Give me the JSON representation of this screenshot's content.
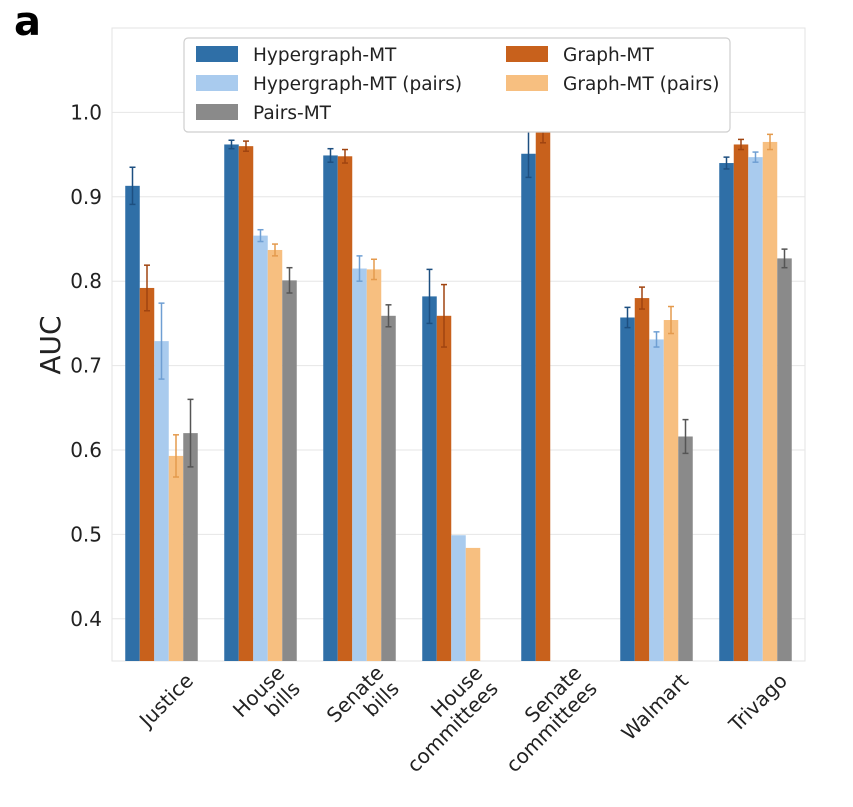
{
  "panel_label": "a",
  "chart_data": {
    "type": "bar",
    "title": "",
    "xlabel": "",
    "ylabel": "AUC",
    "ylim": [
      0.35,
      1.1
    ],
    "yticks": [
      0.4,
      0.5,
      0.6,
      0.7,
      0.8,
      0.9,
      1.0
    ],
    "ytick_labels": [
      "0.4",
      "0.5",
      "0.6",
      "0.7",
      "0.8",
      "0.9",
      "1.0"
    ],
    "grid": true,
    "legend_placement": "top",
    "categories": [
      [
        "Justice"
      ],
      [
        "House",
        "bills"
      ],
      [
        "Senate",
        "bills"
      ],
      [
        "House",
        "committees"
      ],
      [
        "Senate",
        "committees"
      ],
      [
        "Walmart"
      ],
      [
        "Trivago"
      ]
    ],
    "series": [
      {
        "name": "Hypergraph-MT",
        "color": "#2f6fa7",
        "values": [
          0.913,
          0.962,
          0.949,
          0.782,
          0.951,
          0.757,
          0.94
        ],
        "errors": [
          0.022,
          0.005,
          0.008,
          0.032,
          0.028,
          0.012,
          0.007
        ]
      },
      {
        "name": "Graph-MT",
        "color": "#c8611c",
        "values": [
          0.792,
          0.96,
          0.948,
          0.759,
          0.977,
          0.78,
          0.962
        ],
        "errors": [
          0.027,
          0.006,
          0.008,
          0.037,
          0.013,
          0.013,
          0.006
        ]
      },
      {
        "name": "Hypergraph-MT (pairs)",
        "color": "#a9cbee",
        "values": [
          0.729,
          0.854,
          0.815,
          0.499,
          null,
          0.731,
          0.947
        ],
        "errors": [
          0.045,
          0.007,
          0.015,
          0.0,
          null,
          0.009,
          0.006
        ]
      },
      {
        "name": "Graph-MT (pairs)",
        "color": "#f7bf80",
        "values": [
          0.593,
          0.837,
          0.814,
          0.484,
          null,
          0.754,
          0.965
        ],
        "errors": [
          0.025,
          0.007,
          0.012,
          0.0,
          null,
          0.016,
          0.009
        ]
      },
      {
        "name": "Pairs-MT",
        "color": "#8a8a8a",
        "values": [
          0.62,
          0.801,
          0.759,
          null,
          null,
          0.616,
          0.827
        ],
        "errors": [
          0.04,
          0.015,
          0.013,
          null,
          null,
          0.02,
          0.011
        ]
      }
    ]
  }
}
